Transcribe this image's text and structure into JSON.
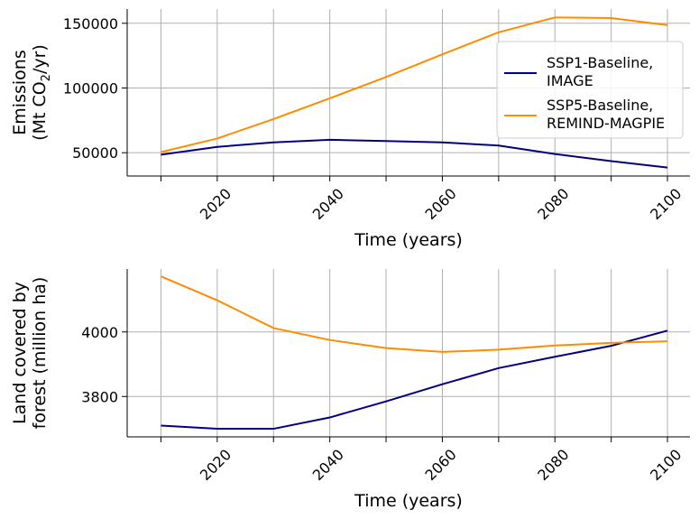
{
  "chart_data": [
    {
      "type": "line",
      "title": "",
      "xlabel": "Time (years)",
      "ylabel_line1": "Emissions",
      "ylabel_line2_prefix": "(Mt CO",
      "ylabel_line2_sub": "2",
      "ylabel_line2_suffix": "/yr)",
      "x": [
        2010,
        2020,
        2030,
        2040,
        2050,
        2060,
        2070,
        2080,
        2090,
        2100
      ],
      "xticks": [
        2020,
        2040,
        2060,
        2080,
        2100
      ],
      "xticks_minor": [
        2010,
        2030,
        2050,
        2070,
        2090
      ],
      "xlim": [
        2004,
        2104
      ],
      "yticks": [
        50000,
        100000,
        150000
      ],
      "ylim": [
        32000,
        161000
      ],
      "grid": true,
      "legend_position": "center-right",
      "series": [
        {
          "name_line1": "SSP1-Baseline,",
          "name_line2": "IMAGE",
          "color": "#000080",
          "values": [
            48500,
            54500,
            58000,
            60000,
            59000,
            58000,
            55500,
            49000,
            43500,
            38500
          ]
        },
        {
          "name_line1": "SSP5-Baseline,",
          "name_line2": "REMIND-MAGPIE",
          "color": "#ff8c00",
          "values": [
            50500,
            61000,
            76000,
            92000,
            108500,
            126000,
            143000,
            154500,
            154000,
            148500
          ]
        }
      ]
    },
    {
      "type": "line",
      "title": "",
      "xlabel": "Time (years)",
      "ylabel_line1": "Land covered by",
      "ylabel_line2": "forest (million ha)",
      "x": [
        2010,
        2020,
        2030,
        2040,
        2050,
        2060,
        2070,
        2080,
        2090,
        2100
      ],
      "xticks": [
        2020,
        2040,
        2060,
        2080,
        2100
      ],
      "xticks_minor": [
        2010,
        2030,
        2050,
        2070,
        2090
      ],
      "xlim": [
        2004,
        2104
      ],
      "yticks": [
        3800,
        4000
      ],
      "ylim": [
        3675,
        4195
      ],
      "grid": true,
      "series": [
        {
          "name": "SSP1-Baseline, IMAGE",
          "color": "#000080",
          "values": [
            3710,
            3700,
            3700,
            3735,
            3785,
            3838,
            3888,
            3923,
            3957,
            4004
          ]
        },
        {
          "name": "SSP5-Baseline, REMIND-MAGPIE",
          "color": "#ff8c00",
          "values": [
            4172,
            4098,
            4012,
            3975,
            3950,
            3938,
            3945,
            3958,
            3966,
            3971
          ]
        }
      ]
    }
  ]
}
